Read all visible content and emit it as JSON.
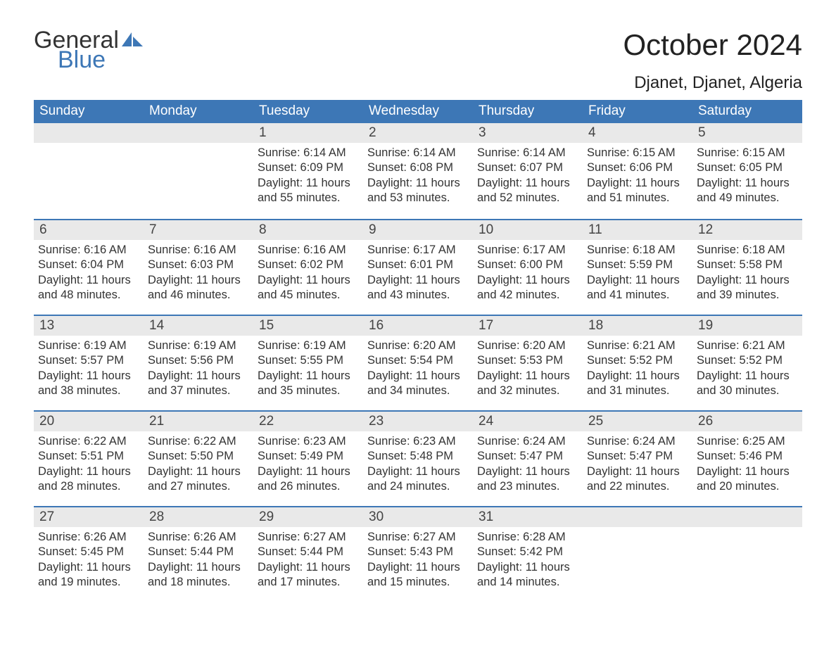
{
  "brand": {
    "word1": "General",
    "word2": "Blue",
    "sail_color": "#3d77b6"
  },
  "title": "October 2024",
  "location": "Djanet, Djanet, Algeria",
  "colors": {
    "header_bg": "#3d77b6",
    "header_text": "#ffffff",
    "daynum_bg": "#e9e9e9",
    "text": "#333333",
    "row_border": "#3d77b6",
    "page_bg": "#ffffff"
  },
  "typography": {
    "title_fontsize": 42,
    "location_fontsize": 24,
    "weekday_fontsize": 19,
    "daynum_fontsize": 19,
    "body_fontsize": 16.5
  },
  "weekdays": [
    "Sunday",
    "Monday",
    "Tuesday",
    "Wednesday",
    "Thursday",
    "Friday",
    "Saturday"
  ],
  "labels": {
    "sunrise": "Sunrise:",
    "sunset": "Sunset:",
    "daylight": "Daylight:"
  },
  "weeks": [
    [
      null,
      null,
      {
        "n": "1",
        "sr": "6:14 AM",
        "ss": "6:09 PM",
        "dl": "11 hours and 55 minutes."
      },
      {
        "n": "2",
        "sr": "6:14 AM",
        "ss": "6:08 PM",
        "dl": "11 hours and 53 minutes."
      },
      {
        "n": "3",
        "sr": "6:14 AM",
        "ss": "6:07 PM",
        "dl": "11 hours and 52 minutes."
      },
      {
        "n": "4",
        "sr": "6:15 AM",
        "ss": "6:06 PM",
        "dl": "11 hours and 51 minutes."
      },
      {
        "n": "5",
        "sr": "6:15 AM",
        "ss": "6:05 PM",
        "dl": "11 hours and 49 minutes."
      }
    ],
    [
      {
        "n": "6",
        "sr": "6:16 AM",
        "ss": "6:04 PM",
        "dl": "11 hours and 48 minutes."
      },
      {
        "n": "7",
        "sr": "6:16 AM",
        "ss": "6:03 PM",
        "dl": "11 hours and 46 minutes."
      },
      {
        "n": "8",
        "sr": "6:16 AM",
        "ss": "6:02 PM",
        "dl": "11 hours and 45 minutes."
      },
      {
        "n": "9",
        "sr": "6:17 AM",
        "ss": "6:01 PM",
        "dl": "11 hours and 43 minutes."
      },
      {
        "n": "10",
        "sr": "6:17 AM",
        "ss": "6:00 PM",
        "dl": "11 hours and 42 minutes."
      },
      {
        "n": "11",
        "sr": "6:18 AM",
        "ss": "5:59 PM",
        "dl": "11 hours and 41 minutes."
      },
      {
        "n": "12",
        "sr": "6:18 AM",
        "ss": "5:58 PM",
        "dl": "11 hours and 39 minutes."
      }
    ],
    [
      {
        "n": "13",
        "sr": "6:19 AM",
        "ss": "5:57 PM",
        "dl": "11 hours and 38 minutes."
      },
      {
        "n": "14",
        "sr": "6:19 AM",
        "ss": "5:56 PM",
        "dl": "11 hours and 37 minutes."
      },
      {
        "n": "15",
        "sr": "6:19 AM",
        "ss": "5:55 PM",
        "dl": "11 hours and 35 minutes."
      },
      {
        "n": "16",
        "sr": "6:20 AM",
        "ss": "5:54 PM",
        "dl": "11 hours and 34 minutes."
      },
      {
        "n": "17",
        "sr": "6:20 AM",
        "ss": "5:53 PM",
        "dl": "11 hours and 32 minutes."
      },
      {
        "n": "18",
        "sr": "6:21 AM",
        "ss": "5:52 PM",
        "dl": "11 hours and 31 minutes."
      },
      {
        "n": "19",
        "sr": "6:21 AM",
        "ss": "5:52 PM",
        "dl": "11 hours and 30 minutes."
      }
    ],
    [
      {
        "n": "20",
        "sr": "6:22 AM",
        "ss": "5:51 PM",
        "dl": "11 hours and 28 minutes."
      },
      {
        "n": "21",
        "sr": "6:22 AM",
        "ss": "5:50 PM",
        "dl": "11 hours and 27 minutes."
      },
      {
        "n": "22",
        "sr": "6:23 AM",
        "ss": "5:49 PM",
        "dl": "11 hours and 26 minutes."
      },
      {
        "n": "23",
        "sr": "6:23 AM",
        "ss": "5:48 PM",
        "dl": "11 hours and 24 minutes."
      },
      {
        "n": "24",
        "sr": "6:24 AM",
        "ss": "5:47 PM",
        "dl": "11 hours and 23 minutes."
      },
      {
        "n": "25",
        "sr": "6:24 AM",
        "ss": "5:47 PM",
        "dl": "11 hours and 22 minutes."
      },
      {
        "n": "26",
        "sr": "6:25 AM",
        "ss": "5:46 PM",
        "dl": "11 hours and 20 minutes."
      }
    ],
    [
      {
        "n": "27",
        "sr": "6:26 AM",
        "ss": "5:45 PM",
        "dl": "11 hours and 19 minutes."
      },
      {
        "n": "28",
        "sr": "6:26 AM",
        "ss": "5:44 PM",
        "dl": "11 hours and 18 minutes."
      },
      {
        "n": "29",
        "sr": "6:27 AM",
        "ss": "5:44 PM",
        "dl": "11 hours and 17 minutes."
      },
      {
        "n": "30",
        "sr": "6:27 AM",
        "ss": "5:43 PM",
        "dl": "11 hours and 15 minutes."
      },
      {
        "n": "31",
        "sr": "6:28 AM",
        "ss": "5:42 PM",
        "dl": "11 hours and 14 minutes."
      },
      null,
      null
    ]
  ]
}
